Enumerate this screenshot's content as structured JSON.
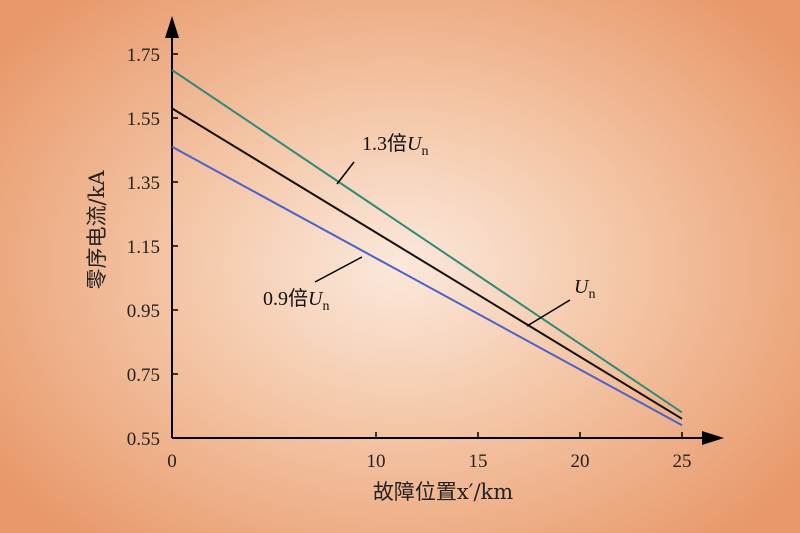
{
  "chart_data": {
    "type": "line",
    "xlabel": "故障位置x′/km",
    "ylabel": "零序电流/kA",
    "x_ticks": [
      "0",
      "10",
      "15",
      "20",
      "25"
    ],
    "y_ticks": [
      "0.55",
      "0.75",
      "0.95",
      "1.15",
      "1.35",
      "1.55",
      "1.75"
    ],
    "xlim": [
      0,
      25
    ],
    "ylim": [
      0.55,
      1.75
    ],
    "grid": false,
    "series": [
      {
        "name": "1.3倍Un",
        "x": [
          0,
          25
        ],
        "values": [
          1.7,
          0.63
        ],
        "color": "#2e8b7a"
      },
      {
        "name": "Un",
        "x": [
          0,
          25
        ],
        "values": [
          1.58,
          0.61
        ],
        "color": "#111111"
      },
      {
        "name": "0.9倍Un",
        "x": [
          0,
          25
        ],
        "values": [
          1.46,
          0.59
        ],
        "color": "#4a63c8"
      }
    ],
    "annotations": [
      {
        "prefix": "1.3倍",
        "symbol": "U",
        "subscript": "n",
        "series": "1.3倍Un"
      },
      {
        "prefix": "",
        "symbol": "U",
        "subscript": "n",
        "series": "Un"
      },
      {
        "prefix": "0.9倍",
        "symbol": "U",
        "subscript": "n",
        "series": "0.9倍Un"
      }
    ]
  }
}
